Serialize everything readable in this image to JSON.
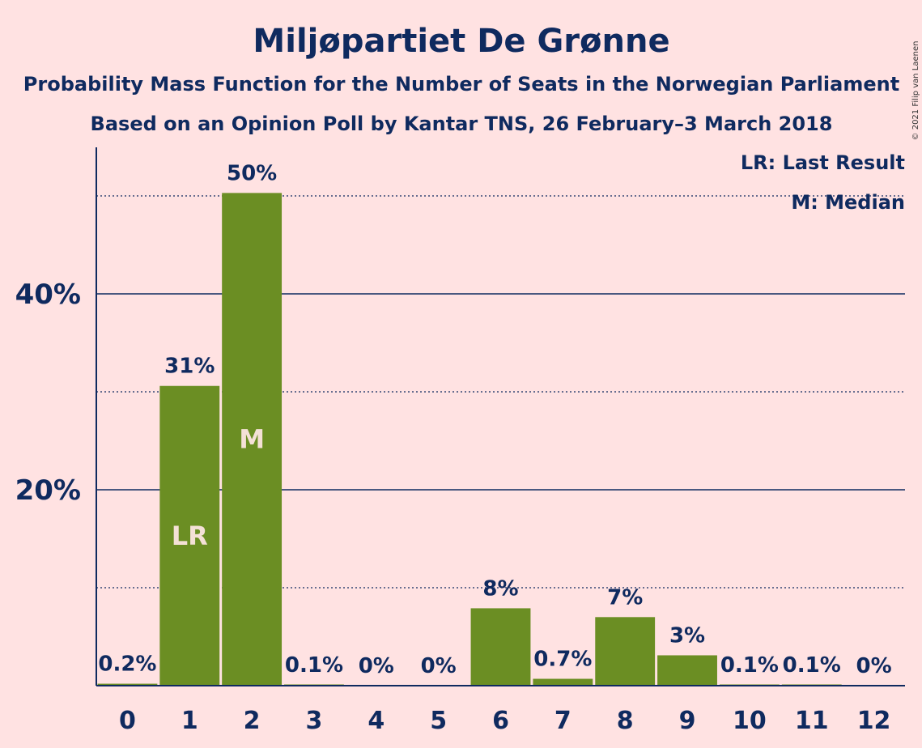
{
  "chart_data": {
    "type": "bar",
    "title": "Miljøpartiet De Grønne",
    "subtitle": "Probability Mass Function for the Number of Seats in the Norwegian Parliament",
    "subtitle2": "Based on an Opinion Poll by Kantar TNS, 26 February–3 March 2018",
    "legend": [
      "LR: Last Result",
      "M: Median"
    ],
    "legend_position": "top-right",
    "copyright": "© 2021 Filip van Laenen",
    "categories": [
      "0",
      "1",
      "2",
      "3",
      "4",
      "5",
      "6",
      "7",
      "8",
      "9",
      "10",
      "11",
      "12"
    ],
    "values": [
      0.2,
      30.6,
      50.3,
      0.1,
      0,
      0,
      7.9,
      0.7,
      7.0,
      3.1,
      0.1,
      0.1,
      0
    ],
    "labels": [
      "0.2%",
      "31%",
      "50%",
      "0.1%",
      "0%",
      "0%",
      "8%",
      "0.7%",
      "7%",
      "3%",
      "0.1%",
      "0.1%",
      "0%"
    ],
    "markers": [
      {
        "index": 1,
        "text": "LR"
      },
      {
        "index": 2,
        "text": "M"
      }
    ],
    "yticks": [
      {
        "value": 20,
        "label": "20%"
      },
      {
        "value": 40,
        "label": "40%"
      }
    ],
    "ylim": [
      0,
      55
    ],
    "grid": true,
    "bar_color": "#6b8e23",
    "text_color": "#0f2a5f",
    "background": "#ffe2e2"
  }
}
